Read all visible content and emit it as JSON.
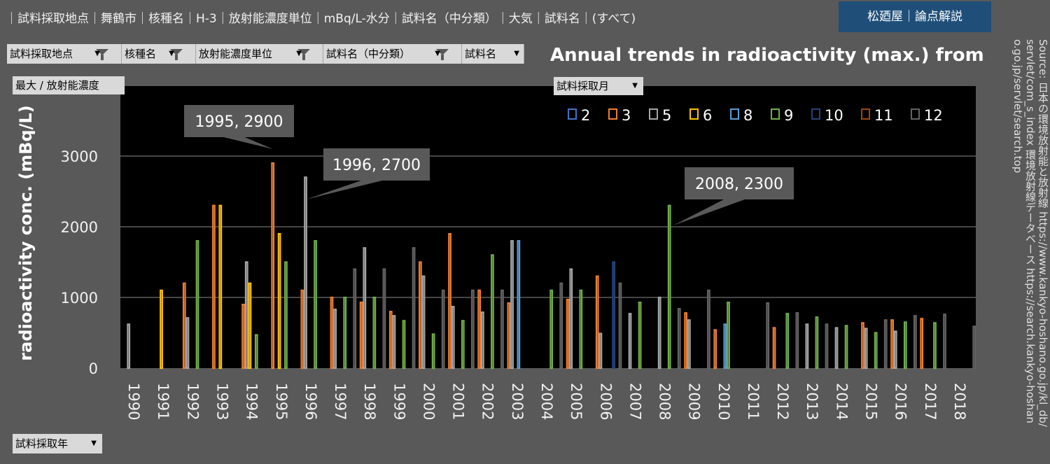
{
  "topbar": {
    "breadcrumb": "｜試料採取地点｜舞鶴市｜核種名｜H-3｜放射能濃度単位｜mBq/L-水分｜試料名（中分類）｜大気｜試料名｜(すべて)",
    "author_badge": "松廼屋｜論点解説"
  },
  "filters": [
    {
      "label": "試料採取地点",
      "filter_icon": "filter-icon"
    },
    {
      "label": "核種名",
      "filter_icon": "filter-icon"
    },
    {
      "label": "放射能濃度単位",
      "filter_icon": "filter-icon"
    },
    {
      "label": "試料名（中分類）",
      "filter_icon": "filter-icon"
    },
    {
      "label": "試料名"
    }
  ],
  "measure_button": "最大 / 放射能濃度",
  "month_button": "試料採取月",
  "year_button": "試料採取年",
  "source_text": "Source: 日本の環境放射能と放射線 https://www.kankyo-hoshano.go.jp/kl_db/servlet/com_s_index 環境放射線データベース https://search.kankyo-hoshano.go.jp/servlet/search.top",
  "chart_data": {
    "type": "bar",
    "title": "Annual trends in radioactivity (max.) from air",
    "ylabel": "radioactivity conc. (mBq/L)",
    "ylim": [
      0,
      4000
    ],
    "yticks": [
      0,
      1000,
      2000,
      3000
    ],
    "grid": true,
    "legend_position": "top-right",
    "categories": [
      "1990",
      "1991",
      "1992",
      "1993",
      "1994",
      "1995",
      "1996",
      "1997",
      "1998",
      "1999",
      "2000",
      "2001",
      "2002",
      "2003",
      "2004",
      "2005",
      "2006",
      "2007",
      "2008",
      "2009",
      "2010",
      "2011",
      "2012",
      "2013",
      "2014",
      "2015",
      "2016",
      "2017",
      "2018"
    ],
    "month_order": [
      "2",
      "3",
      "5",
      "6",
      "8",
      "9",
      "10",
      "11",
      "12"
    ],
    "colors": {
      "2": "#4472c4",
      "3": "#ed7d31",
      "5": "#a5a5a5",
      "6": "#ffc000",
      "8": "#5b9bd5",
      "9": "#70ad47",
      "10": "#264478",
      "11": "#9e480e",
      "12": "#636363"
    },
    "series": [
      {
        "name": "2",
        "values": [
          null,
          null,
          null,
          null,
          null,
          null,
          null,
          null,
          null,
          null,
          null,
          null,
          null,
          null,
          null,
          null,
          null,
          null,
          null,
          null,
          null,
          null,
          null,
          null,
          null,
          null,
          null,
          null,
          null
        ]
      },
      {
        "name": "3",
        "values": [
          null,
          null,
          1200,
          2300,
          900,
          2900,
          1100,
          1000,
          930,
          800,
          1500,
          1900,
          1100,
          920,
          null,
          970,
          1300,
          null,
          null,
          780,
          540,
          null,
          570,
          null,
          null,
          640,
          680,
          700,
          null
        ]
      },
      {
        "name": "5",
        "values": [
          620,
          null,
          710,
          null,
          1500,
          null,
          2700,
          830,
          1700,
          740,
          1300,
          870,
          790,
          1800,
          null,
          1400,
          490,
          770,
          1000,
          680,
          null,
          null,
          null,
          620,
          570,
          560,
          520,
          null,
          null
        ]
      },
      {
        "name": "6",
        "values": [
          null,
          1100,
          null,
          2300,
          1200,
          1900,
          null,
          null,
          null,
          null,
          null,
          null,
          null,
          null,
          null,
          null,
          null,
          null,
          null,
          null,
          null,
          null,
          null,
          null,
          null,
          null,
          null,
          null,
          null
        ]
      },
      {
        "name": "8",
        "values": [
          null,
          null,
          null,
          null,
          null,
          null,
          null,
          null,
          null,
          null,
          null,
          null,
          null,
          1800,
          null,
          null,
          null,
          null,
          null,
          null,
          620,
          null,
          null,
          null,
          null,
          null,
          null,
          null,
          null
        ]
      },
      {
        "name": "9",
        "values": [
          null,
          null,
          1800,
          null,
          470,
          1500,
          1800,
          1000,
          1000,
          670,
          480,
          670,
          1600,
          null,
          1100,
          1100,
          null,
          930,
          2300,
          null,
          930,
          null,
          770,
          720,
          600,
          500,
          650,
          640,
          null
        ]
      },
      {
        "name": "10",
        "values": [
          null,
          null,
          null,
          null,
          null,
          null,
          null,
          null,
          null,
          null,
          null,
          null,
          null,
          null,
          null,
          null,
          1500,
          null,
          null,
          null,
          null,
          null,
          null,
          null,
          null,
          null,
          null,
          null,
          null
        ]
      },
      {
        "name": "11",
        "values": [
          null,
          null,
          null,
          null,
          null,
          null,
          null,
          null,
          null,
          null,
          null,
          null,
          null,
          null,
          null,
          null,
          null,
          null,
          null,
          null,
          null,
          null,
          null,
          null,
          null,
          null,
          null,
          null,
          null
        ]
      },
      {
        "name": "12",
        "values": [
          null,
          null,
          null,
          null,
          null,
          null,
          null,
          1400,
          1400,
          1700,
          1100,
          1100,
          1100,
          null,
          1200,
          null,
          1200,
          null,
          840,
          1100,
          null,
          920,
          780,
          620,
          null,
          680,
          740,
          760,
          590
        ]
      }
    ],
    "annotations": [
      {
        "text": "1995, 2900",
        "year": "1995",
        "value": 2900
      },
      {
        "text": "1996, 2700",
        "year": "1996",
        "value": 2700
      },
      {
        "text": "2008, 2300",
        "year": "2008",
        "value": 2300
      }
    ]
  }
}
